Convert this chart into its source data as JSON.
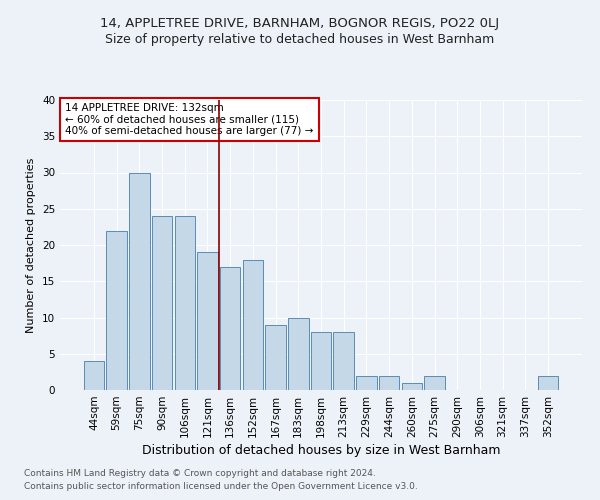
{
  "title1": "14, APPLETREE DRIVE, BARNHAM, BOGNOR REGIS, PO22 0LJ",
  "title2": "Size of property relative to detached houses in West Barnham",
  "xlabel": "Distribution of detached houses by size in West Barnham",
  "ylabel": "Number of detached properties",
  "categories": [
    "44sqm",
    "59sqm",
    "75sqm",
    "90sqm",
    "106sqm",
    "121sqm",
    "136sqm",
    "152sqm",
    "167sqm",
    "183sqm",
    "198sqm",
    "213sqm",
    "229sqm",
    "244sqm",
    "260sqm",
    "275sqm",
    "290sqm",
    "306sqm",
    "321sqm",
    "337sqm",
    "352sqm"
  ],
  "values": [
    4,
    22,
    30,
    24,
    24,
    19,
    17,
    18,
    9,
    10,
    8,
    8,
    2,
    2,
    1,
    2,
    0,
    0,
    0,
    0,
    2
  ],
  "bar_color": "#c5d8e8",
  "bar_edge_color": "#5a8db5",
  "vline_color": "#8b0000",
  "vline_x": 5.5,
  "annotation_box_text": "14 APPLETREE DRIVE: 132sqm\n← 60% of detached houses are smaller (115)\n40% of semi-detached houses are larger (77) →",
  "annotation_box_color": "white",
  "annotation_box_edgecolor": "#cc0000",
  "footer1": "Contains HM Land Registry data © Crown copyright and database right 2024.",
  "footer2": "Contains public sector information licensed under the Open Government Licence v3.0.",
  "bg_color": "#edf2f8",
  "grid_color": "white",
  "ylim": [
    0,
    40
  ],
  "yticks": [
    0,
    5,
    10,
    15,
    20,
    25,
    30,
    35,
    40
  ],
  "title1_fontsize": 9.5,
  "title2_fontsize": 9,
  "xlabel_fontsize": 9,
  "ylabel_fontsize": 8,
  "tick_fontsize": 7.5,
  "annot_fontsize": 7.5,
  "footer_fontsize": 6.5
}
